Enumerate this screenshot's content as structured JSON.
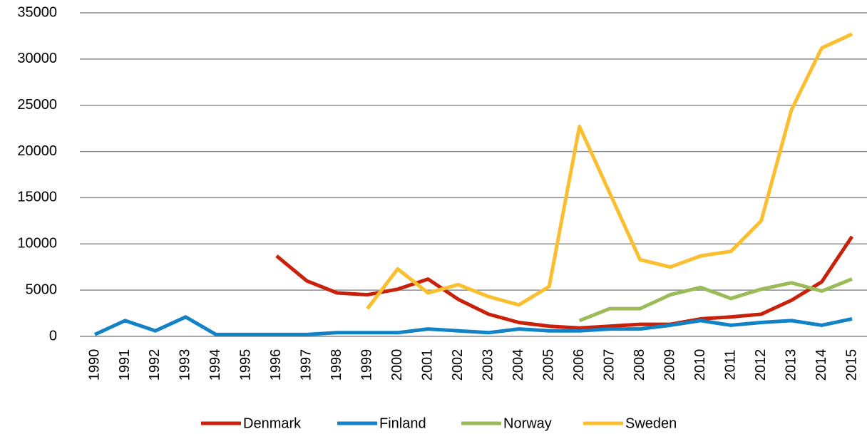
{
  "chart_data": {
    "type": "line",
    "categories": [
      "1990",
      "1991",
      "1992",
      "1993",
      "1994",
      "1995",
      "1996",
      "1997",
      "1998",
      "1999",
      "2000",
      "2001",
      "2002",
      "2003",
      "2004",
      "2005",
      "2006",
      "2007",
      "2008",
      "2009",
      "2010",
      "2011",
      "2012",
      "2013",
      "2014",
      "2015"
    ],
    "series": [
      {
        "name": "Denmark",
        "color": "#c9200a",
        "values": [
          null,
          null,
          null,
          null,
          null,
          null,
          8700,
          6000,
          4700,
          4500,
          5100,
          6200,
          4000,
          2400,
          1500,
          1100,
          900,
          1100,
          1300,
          1300,
          1900,
          2100,
          2400,
          3900,
          5900,
          10800
        ]
      },
      {
        "name": "Finland",
        "color": "#1282c6",
        "values": [
          200,
          1700,
          600,
          2100,
          200,
          200,
          200,
          200,
          400,
          400,
          400,
          800,
          600,
          400,
          800,
          600,
          600,
          800,
          800,
          1200,
          1700,
          1200,
          1500,
          1700,
          1200,
          1900
        ]
      },
      {
        "name": "Norway",
        "color": "#9bbb59",
        "values": [
          null,
          null,
          null,
          null,
          null,
          null,
          null,
          null,
          null,
          null,
          null,
          null,
          null,
          null,
          null,
          null,
          1700,
          3000,
          3000,
          4500,
          5300,
          4100,
          5100,
          5800,
          4900,
          6200
        ]
      },
      {
        "name": "Sweden",
        "color": "#fbbe2f",
        "values": [
          null,
          null,
          null,
          null,
          null,
          null,
          null,
          null,
          null,
          3000,
          7300,
          4700,
          5600,
          4300,
          3400,
          5400,
          22700,
          15500,
          8300,
          7500,
          8700,
          9200,
          12500,
          24500,
          31200,
          32700
        ]
      }
    ],
    "ylim": [
      0,
      35000
    ],
    "yticks": [
      0,
      5000,
      10000,
      15000,
      20000,
      25000,
      30000,
      35000
    ],
    "grid": true,
    "legend": "bottom"
  }
}
